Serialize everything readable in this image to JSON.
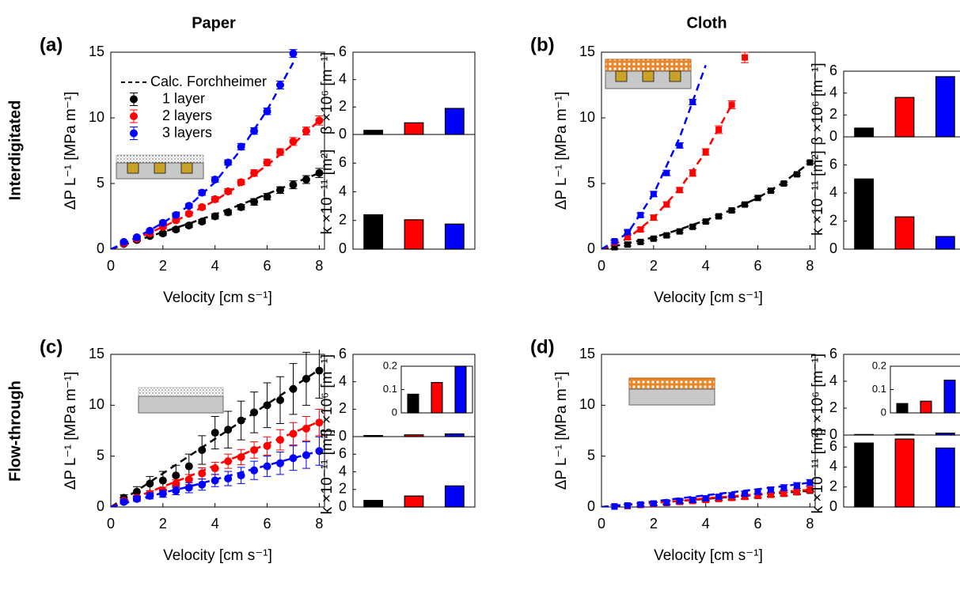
{
  "column_titles": [
    "Paper",
    "Cloth"
  ],
  "row_titles": [
    "Interdigitated",
    "Flow-through"
  ],
  "chart_data": [
    {
      "type": "line",
      "label": "(a)",
      "xlabel": "Velocity [cm s⁻¹]",
      "ylabel": "ΔP L⁻¹ [MPa m⁻¹]",
      "xlim": [
        0,
        8.2
      ],
      "ylim": [
        0,
        15
      ],
      "xticks": [
        0,
        2,
        4,
        6,
        8
      ],
      "yticks": [
        0,
        5,
        10,
        15
      ],
      "marker": "circle",
      "legend": true,
      "fit_name": "Calc. Forchheimer",
      "x": [
        0.5,
        1,
        1.5,
        2,
        2.5,
        3,
        3.5,
        4,
        4.5,
        5,
        5.5,
        6,
        6.5,
        7,
        7.5,
        8
      ],
      "fit_x": [
        0,
        1,
        2,
        3,
        4,
        5,
        6,
        7,
        8
      ],
      "series": [
        {
          "name": "1 layer",
          "color": "#000000",
          "values": [
            0.4,
            0.7,
            1.0,
            1.2,
            1.5,
            1.8,
            2.1,
            2.5,
            2.8,
            3.2,
            3.6,
            4.0,
            4.5,
            4.9,
            5.3,
            5.8
          ],
          "errors": [
            0.1,
            0.1,
            0.1,
            0.15,
            0.15,
            0.15,
            0.15,
            0.2,
            0.2,
            0.2,
            0.25,
            0.25,
            0.25,
            0.3,
            0.3,
            0.35
          ],
          "fit": [
            0,
            0.65,
            1.3,
            1.95,
            2.65,
            3.4,
            4.2,
            5.0,
            5.8
          ]
        },
        {
          "name": "2 layers",
          "color": "#ff0000",
          "values": [
            0.45,
            0.8,
            1.2,
            1.7,
            2.2,
            2.7,
            3.2,
            3.8,
            4.4,
            5.1,
            5.8,
            6.6,
            7.4,
            8.2,
            9.0,
            9.8
          ],
          "errors": [
            0.1,
            0.1,
            0.1,
            0.15,
            0.15,
            0.15,
            0.15,
            0.2,
            0.2,
            0.2,
            0.25,
            0.25,
            0.25,
            0.3,
            0.3,
            0.35
          ],
          "fit": [
            0,
            0.8,
            1.7,
            2.65,
            3.7,
            4.95,
            6.4,
            8.0,
            9.8
          ]
        },
        {
          "name": "3 layers",
          "color": "#0000ff",
          "values": [
            0.55,
            0.9,
            1.4,
            2.0,
            2.6,
            3.3,
            4.3,
            5.3,
            6.6,
            7.8,
            9.0,
            10.5,
            12.5,
            14.9,
            null,
            null
          ],
          "errors": [
            0.1,
            0.1,
            0.1,
            0.15,
            0.15,
            0.15,
            0.2,
            0.2,
            0.2,
            0.25,
            0.25,
            0.25,
            0.3,
            0.3,
            null,
            null
          ],
          "fit": [
            0,
            0.9,
            2.0,
            3.3,
            5.1,
            7.6,
            10.6,
            14.2,
            null
          ]
        }
      ]
    },
    {
      "type": "bar",
      "ylabel": "β ×10⁶ [m⁻¹]",
      "ylim": [
        0,
        6
      ],
      "yticks": [
        0,
        2,
        4,
        6
      ],
      "values": [
        0.3,
        0.85,
        1.9
      ],
      "colors": [
        "#000000",
        "#ff0000",
        "#0000ff"
      ]
    },
    {
      "type": "bar",
      "ylabel": "k ×10⁻¹¹ [m²]",
      "ylim": [
        0,
        8
      ],
      "yticks": [
        0,
        2,
        4,
        6
      ],
      "values": [
        2.4,
        2.05,
        1.75
      ],
      "colors": [
        "#000000",
        "#ff0000",
        "#0000ff"
      ]
    },
    {
      "type": "line",
      "label": "(b)",
      "xlabel": "Velocity [cm s⁻¹]",
      "ylabel": "ΔP L⁻¹ [MPa m⁻¹]",
      "xlim": [
        0,
        8.2
      ],
      "ylim": [
        0,
        15
      ],
      "xticks": [
        0,
        2,
        4,
        6,
        8
      ],
      "yticks": [
        0,
        5,
        10,
        15
      ],
      "marker": "square",
      "x": [
        0.5,
        1,
        1.5,
        2,
        2.5,
        3,
        3.5,
        4,
        4.5,
        5,
        5.5,
        6,
        6.5,
        7,
        7.5,
        8
      ],
      "fit_x": [
        0,
        1,
        2,
        3,
        4,
        5,
        6,
        7,
        8
      ],
      "series": [
        {
          "color": "#000000",
          "values": [
            0.15,
            0.35,
            0.55,
            0.8,
            1.05,
            1.35,
            1.7,
            2.1,
            2.5,
            2.95,
            3.4,
            3.9,
            4.45,
            5.0,
            5.7,
            6.6
          ],
          "errors": [
            0.1,
            0.1,
            0.1,
            0.1,
            0.1,
            0.1,
            0.1,
            0.1,
            0.1,
            0.1,
            0.1,
            0.1,
            0.1,
            0.1,
            0.1,
            0.1
          ],
          "fit": [
            0,
            0.45,
            0.9,
            1.5,
            2.2,
            3.0,
            3.9,
            5.1,
            6.6
          ]
        },
        {
          "color": "#ff0000",
          "values": [
            0.5,
            0.9,
            1.5,
            2.4,
            3.4,
            4.5,
            5.8,
            7.4,
            9.1,
            11.0,
            14.6,
            null,
            null,
            null,
            null,
            null
          ],
          "errors": [
            0.15,
            0.15,
            0.15,
            0.2,
            0.2,
            0.2,
            0.25,
            0.25,
            0.3,
            0.3,
            0.4,
            null,
            null,
            null,
            null,
            null
          ],
          "fit": [
            0,
            0.8,
            2.4,
            4.6,
            7.4,
            11.0,
            null,
            null,
            null
          ]
        },
        {
          "color": "#0000ff",
          "values": [
            0.6,
            1.3,
            2.6,
            4.2,
            5.8,
            7.9,
            11.2,
            null,
            null,
            null,
            null,
            null,
            null,
            null,
            null,
            null
          ],
          "errors": [
            0.1,
            0.15,
            0.15,
            0.2,
            0.2,
            0.2,
            0.2,
            null,
            null,
            null,
            null,
            null,
            null,
            null,
            null,
            null
          ],
          "fit": [
            0,
            1.2,
            4.2,
            8.5,
            14.0,
            null,
            null,
            null,
            null
          ]
        }
      ]
    },
    {
      "type": "bar",
      "ylabel": "β ×10⁶ [m⁻¹]",
      "ylim": [
        0,
        6
      ],
      "yticks": [
        0,
        2,
        4,
        6
      ],
      "values": [
        0.8,
        3.6,
        5.5
      ],
      "colors": [
        "#000000",
        "#ff0000",
        "#0000ff"
      ]
    },
    {
      "type": "bar",
      "ylabel": "k ×10⁻¹¹ [m²]",
      "ylim": [
        0,
        8
      ],
      "yticks": [
        0,
        2,
        4,
        6
      ],
      "values": [
        5.0,
        2.3,
        0.9
      ],
      "colors": [
        "#000000",
        "#ff0000",
        "#0000ff"
      ]
    },
    {
      "type": "line",
      "label": "(c)",
      "xlabel": "Velocity [cm s⁻¹]",
      "ylabel": "ΔP L⁻¹ [MPa m⁻¹]",
      "xlim": [
        0,
        8.2
      ],
      "ylim": [
        0,
        15
      ],
      "xticks": [
        0,
        2,
        4,
        6,
        8
      ],
      "yticks": [
        0,
        5,
        10,
        15
      ],
      "marker": "circle",
      "x": [
        0.5,
        1,
        1.5,
        2,
        2.5,
        3,
        3.5,
        4,
        4.5,
        5,
        5.5,
        6,
        6.5,
        7,
        7.5,
        8
      ],
      "fit_x": [
        0,
        1,
        2,
        3,
        4,
        5,
        6,
        7,
        8
      ],
      "series": [
        {
          "color": "#000000",
          "values": [
            0.9,
            1.5,
            2.3,
            2.6,
            3.1,
            4.0,
            5.6,
            7.3,
            7.6,
            8.5,
            9.3,
            10.0,
            10.5,
            11.6,
            12.6,
            13.4
          ],
          "errors": [
            0.3,
            0.5,
            0.7,
            0.9,
            1.0,
            1.2,
            1.4,
            1.6,
            1.8,
            1.9,
            2.0,
            2.2,
            2.3,
            2.5,
            2.6,
            2.7
          ],
          "fit": [
            0,
            1.6,
            3.3,
            5.0,
            6.7,
            8.4,
            10.1,
            11.8,
            13.5
          ]
        },
        {
          "color": "#ff0000",
          "values": [
            0.6,
            0.9,
            1.3,
            1.6,
            2.3,
            2.7,
            3.3,
            3.8,
            4.5,
            4.9,
            5.6,
            6.0,
            6.6,
            7.2,
            7.7,
            8.3
          ],
          "errors": [
            0.2,
            0.25,
            0.3,
            0.35,
            0.4,
            0.5,
            0.55,
            0.6,
            0.7,
            0.75,
            0.8,
            0.9,
            1.0,
            1.1,
            1.2,
            1.3
          ],
          "fit": [
            0,
            1.0,
            2.0,
            3.0,
            4.1,
            5.1,
            6.2,
            7.3,
            8.4
          ]
        },
        {
          "color": "#0000ff",
          "values": [
            0.5,
            0.8,
            1.1,
            1.3,
            1.6,
            1.9,
            2.2,
            2.6,
            2.8,
            3.1,
            3.6,
            4.0,
            4.3,
            4.8,
            5.1,
            5.5
          ],
          "errors": [
            0.2,
            0.25,
            0.3,
            0.35,
            0.4,
            0.5,
            0.55,
            0.6,
            0.7,
            0.8,
            0.9,
            1.0,
            1.1,
            1.2,
            1.3,
            1.4
          ],
          "fit": [
            0,
            0.7,
            1.4,
            2.0,
            2.7,
            3.4,
            4.1,
            4.8,
            5.5
          ]
        }
      ]
    },
    {
      "type": "bar",
      "ylabel": "β ×10⁶ [m⁻¹]",
      "ylim": [
        0,
        6
      ],
      "yticks": [
        0,
        2,
        4,
        6
      ],
      "values": [
        0.08,
        0.13,
        0.2
      ],
      "colors": [
        "#000000",
        "#ff0000",
        "#0000ff"
      ],
      "inset": {
        "ylim": [
          0,
          0.2
        ],
        "yticks": [
          0,
          0.1,
          0.2
        ]
      }
    },
    {
      "type": "bar",
      "ylabel": "k ×10⁻¹¹ [m²]",
      "ylim": [
        0,
        8
      ],
      "yticks": [
        0,
        2,
        4,
        6
      ],
      "values": [
        0.75,
        1.25,
        2.4
      ],
      "colors": [
        "#000000",
        "#ff0000",
        "#0000ff"
      ]
    },
    {
      "type": "line",
      "label": "(d)",
      "xlabel": "Velocity [cm s⁻¹]",
      "ylabel": "ΔP L⁻¹ [MPa m⁻¹]",
      "xlim": [
        0,
        8.2
      ],
      "ylim": [
        0,
        15
      ],
      "xticks": [
        0,
        2,
        4,
        6,
        8
      ],
      "yticks": [
        0,
        5,
        10,
        15
      ],
      "marker": "square",
      "x": [
        0.5,
        1,
        1.5,
        2,
        2.5,
        3,
        3.5,
        4,
        4.5,
        5,
        5.5,
        6,
        6.5,
        7,
        7.5,
        8
      ],
      "fit_x": [
        0,
        1,
        2,
        3,
        4,
        5,
        6,
        7,
        8
      ],
      "series": [
        {
          "color": "#000000",
          "values": [
            0.05,
            0.1,
            0.2,
            0.3,
            0.4,
            0.5,
            0.6,
            0.7,
            0.8,
            0.9,
            1.0,
            1.1,
            1.2,
            1.3,
            1.45,
            1.6
          ],
          "errors": [
            0.15,
            0.15,
            0.15,
            0.15,
            0.15,
            0.15,
            0.15,
            0.15,
            0.15,
            0.15,
            0.15,
            0.15,
            0.15,
            0.15,
            0.15,
            0.15
          ],
          "fit": [
            0,
            0.2,
            0.4,
            0.6,
            0.8,
            1.0,
            1.2,
            1.4,
            1.6
          ]
        },
        {
          "color": "#ff0000",
          "values": [
            0.05,
            0.1,
            0.2,
            0.3,
            0.4,
            0.5,
            0.6,
            0.7,
            0.8,
            0.9,
            1.0,
            1.1,
            1.2,
            1.35,
            1.5,
            1.7
          ],
          "errors": [
            0.15,
            0.15,
            0.15,
            0.15,
            0.2,
            0.2,
            0.2,
            0.2,
            0.2,
            0.25,
            0.25,
            0.25,
            0.25,
            0.3,
            0.3,
            0.3
          ],
          "fit": [
            0,
            0.2,
            0.4,
            0.6,
            0.85,
            1.05,
            1.25,
            1.5,
            1.7
          ]
        },
        {
          "color": "#0000ff",
          "values": [
            0.05,
            0.15,
            0.25,
            0.35,
            0.45,
            0.6,
            0.7,
            0.85,
            1.0,
            1.15,
            1.3,
            1.5,
            1.7,
            1.9,
            2.1,
            2.4
          ],
          "errors": [
            0.15,
            0.15,
            0.15,
            0.15,
            0.2,
            0.2,
            0.2,
            0.2,
            0.2,
            0.25,
            0.25,
            0.25,
            0.25,
            0.3,
            0.3,
            0.3
          ],
          "fit": [
            0,
            0.25,
            0.55,
            0.85,
            1.15,
            1.45,
            1.75,
            2.05,
            2.4
          ]
        }
      ]
    },
    {
      "type": "bar",
      "ylabel": "β ×10⁶ [m⁻¹]",
      "ylim": [
        0,
        6
      ],
      "yticks": [
        0,
        2,
        4,
        6
      ],
      "values": [
        0.04,
        0.05,
        0.14
      ],
      "colors": [
        "#000000",
        "#ff0000",
        "#0000ff"
      ],
      "inset": {
        "ylim": [
          0,
          0.2
        ],
        "yticks": [
          0,
          0.1,
          0.2
        ]
      }
    },
    {
      "type": "bar",
      "ylabel": "k ×10⁻¹¹ [m²]",
      "ylim": [
        0,
        7.2
      ],
      "yticks": [
        0,
        2,
        4,
        6
      ],
      "values": [
        6.4,
        6.8,
        5.9
      ],
      "colors": [
        "#000000",
        "#ff0000",
        "#0000ff"
      ]
    }
  ]
}
